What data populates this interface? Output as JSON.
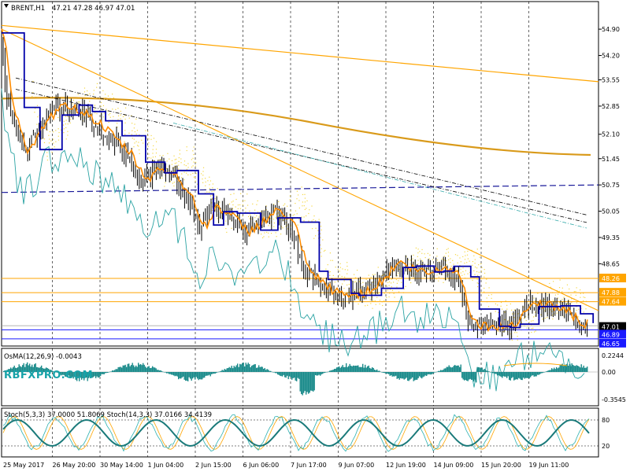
{
  "chart_data": {
    "type": "candlestick",
    "header": {
      "symbol": "BRENT,H1",
      "ohlc": "47.21 47.28 46.97 47.01",
      "osma": "OsMA(12,26,9) -0.0043",
      "stoch": "Stoch(5,3,3) 37.0000 51.8069  Stoch(14,3,3) 37.0166 34.4139",
      "watermark": "RBFXPRO.COM"
    },
    "price_axis": {
      "ticks": [
        "54.90",
        "54.20",
        "53.55",
        "52.85",
        "52.10",
        "51.45",
        "50.75",
        "50.05",
        "49.35",
        "48.65"
      ],
      "range": [
        46.5,
        55.3
      ]
    },
    "tags": [
      {
        "label": "48.26",
        "value": 48.26,
        "color": "#ffa500"
      },
      {
        "label": "47.88",
        "value": 47.88,
        "color": "#ffa500"
      },
      {
        "label": "47.64",
        "value": 47.64,
        "color": "#ffa500"
      },
      {
        "label": "47.01",
        "value": 47.01,
        "color": "#000000"
      },
      {
        "label": "46.89",
        "value": 46.89,
        "color": "#1a1aff"
      },
      {
        "label": "46.65",
        "value": 46.65,
        "color": "#1a1aff"
      }
    ],
    "osma_axis": {
      "ticks": [
        "0.2244",
        "0.00",
        "-0.3545"
      ]
    },
    "stoch_axis": {
      "ticks": [
        "80",
        "20"
      ]
    },
    "date_labels": [
      "25 May 2017",
      "26 May 20:00",
      "30 May 14:00",
      "1 Jun 04:00",
      "2 Jun 15:00",
      "6 Jun 06:00",
      "7 Jun 17:00",
      "9 Jun 07:00",
      "12 Jun 19:00",
      "14 Jun 09:00",
      "15 Jun 20:00",
      "19 Jun 11:00"
    ],
    "close_path": [
      [
        0,
        54.8
      ],
      [
        8,
        53.2
      ],
      [
        18,
        52.4
      ],
      [
        30,
        51.6
      ],
      [
        45,
        52.1
      ],
      [
        60,
        52.6
      ],
      [
        80,
        52.9
      ],
      [
        100,
        52.7
      ],
      [
        120,
        52.4
      ],
      [
        140,
        52.0
      ],
      [
        160,
        51.6
      ],
      [
        180,
        50.9
      ],
      [
        200,
        51.2
      ],
      [
        220,
        51.0
      ],
      [
        240,
        50.3
      ],
      [
        255,
        49.6
      ],
      [
        270,
        50.2
      ],
      [
        290,
        49.9
      ],
      [
        310,
        49.5
      ],
      [
        330,
        49.8
      ],
      [
        350,
        50.1
      ],
      [
        370,
        49.6
      ],
      [
        385,
        48.5
      ],
      [
        400,
        48.2
      ],
      [
        420,
        47.9
      ],
      [
        440,
        47.8
      ],
      [
        460,
        47.9
      ],
      [
        480,
        48.2
      ],
      [
        500,
        48.7
      ],
      [
        520,
        48.5
      ],
      [
        540,
        48.4
      ],
      [
        560,
        48.6
      ],
      [
        580,
        48.3
      ],
      [
        595,
        47.1
      ],
      [
        610,
        47.0
      ],
      [
        630,
        46.95
      ],
      [
        650,
        47.1
      ],
      [
        665,
        47.5
      ],
      [
        680,
        47.6
      ],
      [
        700,
        47.5
      ],
      [
        715,
        47.4
      ],
      [
        730,
        47.1
      ],
      [
        745,
        47.01
      ]
    ],
    "horizontal_levels": [
      {
        "value": 48.26,
        "color": "#ffa500"
      },
      {
        "value": 47.88,
        "color": "#ffa500"
      },
      {
        "value": 47.64,
        "color": "#ffa500"
      },
      {
        "value": 46.89,
        "color": "#1a1aff"
      },
      {
        "value": 46.65,
        "color": "#1a1aff"
      }
    ],
    "colors": {
      "fast_ma": "#ff8c00",
      "slow_ma": "#0000aa",
      "envelope": "#2aa3a3",
      "cloud": "#f5d742",
      "trend": "#ffa500",
      "dashed": "#3050d0",
      "osma": "#1a8a8a",
      "stoch_main": "#1a7a7a",
      "stoch_signal": "#ffa500"
    }
  }
}
